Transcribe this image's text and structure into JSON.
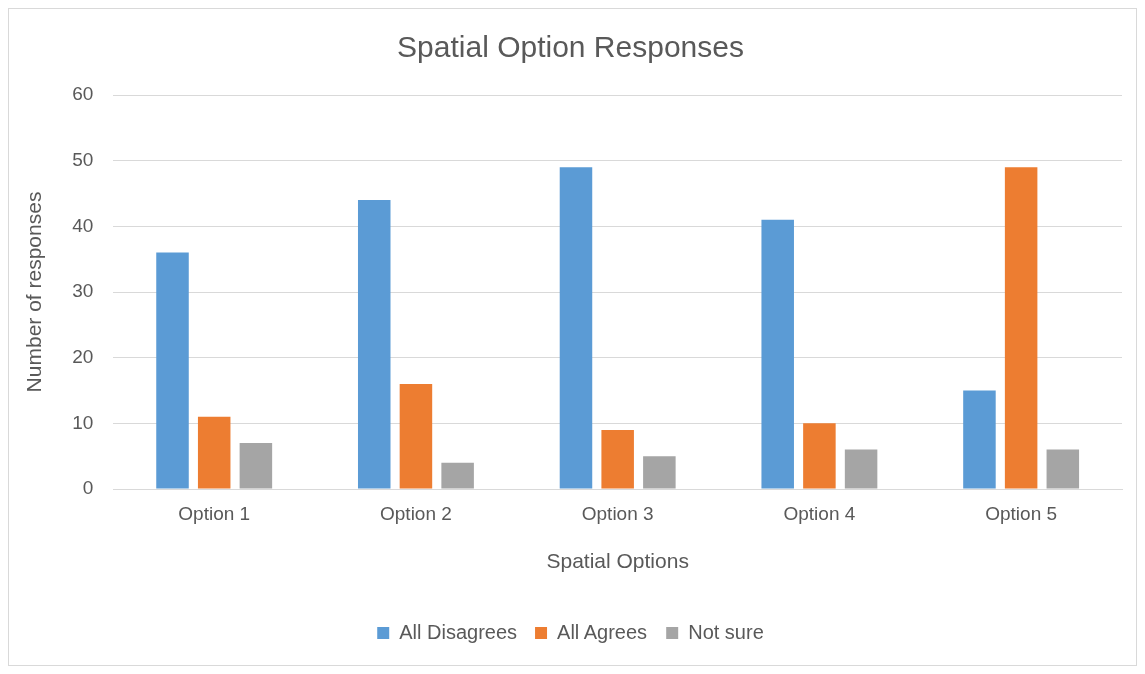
{
  "chart_data": {
    "type": "bar",
    "title": "Spatial Option Responses",
    "xlabel": "Spatial Options",
    "ylabel": "Number of responses",
    "categories": [
      "Option 1",
      "Option 2",
      "Option 3",
      "Option 4",
      "Option 5"
    ],
    "series": [
      {
        "name": "All Disagrees",
        "color": "#5b9bd5",
        "values": [
          36,
          44,
          49,
          41,
          15
        ]
      },
      {
        "name": "All Agrees",
        "color": "#ed7d31",
        "values": [
          11,
          16,
          9,
          10,
          49
        ]
      },
      {
        "name": "Not sure",
        "color": "#a5a5a5",
        "values": [
          7,
          4,
          5,
          6,
          6
        ]
      }
    ],
    "ylim": [
      0,
      60
    ],
    "yticks": [
      0,
      10,
      20,
      30,
      40,
      50,
      60
    ],
    "grid": "y",
    "legend": "bottom"
  }
}
